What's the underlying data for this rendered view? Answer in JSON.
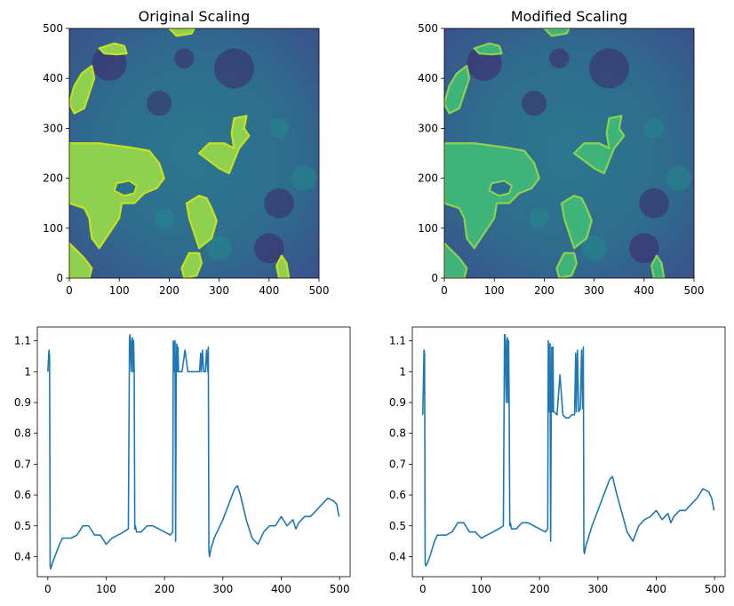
{
  "figure": {
    "panels": 4
  },
  "chart_data": [
    {
      "type": "heatmap",
      "title": "Original Scaling",
      "xlabel": "",
      "ylabel": "",
      "xlim": [
        0,
        500
      ],
      "ylim": [
        0,
        500
      ],
      "xticks": [
        0,
        100,
        200,
        300,
        400,
        500
      ],
      "yticks": [
        0,
        100,
        200,
        300,
        400,
        500
      ],
      "colormap": "viridis",
      "background_color": "#2b6f8e",
      "island_color": "#8fd14f",
      "island_edge_color": "#c7e020",
      "regions": [
        {
          "name": "left-central",
          "points": [
            [
              0,
              270
            ],
            [
              60,
              270
            ],
            [
              120,
              262
            ],
            [
              160,
              255
            ],
            [
              180,
              230
            ],
            [
              190,
              200
            ],
            [
              175,
              180
            ],
            [
              150,
              170
            ],
            [
              130,
              150
            ],
            [
              105,
              150
            ],
            [
              100,
              120
            ],
            [
              80,
              90
            ],
            [
              60,
              60
            ],
            [
              45,
              80
            ],
            [
              40,
              120
            ],
            [
              30,
              140
            ],
            [
              0,
              150
            ]
          ]
        },
        {
          "name": "upper-left",
          "points": [
            [
              0,
              350
            ],
            [
              10,
              385
            ],
            [
              25,
              410
            ],
            [
              45,
              425
            ],
            [
              50,
              400
            ],
            [
              40,
              370
            ],
            [
              30,
              340
            ],
            [
              10,
              330
            ]
          ]
        },
        {
          "name": "top-blob",
          "points": [
            [
              60,
              460
            ],
            [
              90,
              470
            ],
            [
              110,
              465
            ],
            [
              115,
              450
            ],
            [
              95,
              448
            ],
            [
              70,
              450
            ]
          ]
        },
        {
          "name": "top-edge",
          "points": [
            [
              200,
              500
            ],
            [
              250,
              500
            ],
            [
              245,
              490
            ],
            [
              215,
              485
            ]
          ]
        },
        {
          "name": "right-upper",
          "points": [
            [
              330,
              320
            ],
            [
              355,
              325
            ],
            [
              350,
              300
            ],
            [
              360,
              285
            ],
            [
              340,
              260
            ],
            [
              320,
              210
            ],
            [
              300,
              220
            ],
            [
              280,
              235
            ],
            [
              260,
              250
            ],
            [
              280,
              270
            ],
            [
              310,
              270
            ],
            [
              330,
              260
            ],
            [
              325,
              290
            ]
          ]
        },
        {
          "name": "center-right",
          "points": [
            [
              260,
              165
            ],
            [
              275,
              160
            ],
            [
              285,
              140
            ],
            [
              295,
              115
            ],
            [
              285,
              80
            ],
            [
              260,
              60
            ],
            [
              250,
              90
            ],
            [
              240,
              120
            ],
            [
              235,
              150
            ]
          ]
        },
        {
          "name": "bottom-center",
          "points": [
            [
              240,
              50
            ],
            [
              260,
              50
            ],
            [
              265,
              30
            ],
            [
              255,
              5
            ],
            [
              230,
              0
            ],
            [
              225,
              20
            ]
          ]
        },
        {
          "name": "bottom-right",
          "points": [
            [
              420,
              0
            ],
            [
              440,
              0
            ],
            [
              435,
              30
            ],
            [
              425,
              45
            ],
            [
              415,
              25
            ]
          ]
        },
        {
          "name": "bottom-left",
          "points": [
            [
              0,
              70
            ],
            [
              15,
              55
            ],
            [
              30,
              40
            ],
            [
              45,
              20
            ],
            [
              40,
              0
            ],
            [
              0,
              0
            ]
          ]
        },
        {
          "name": "hole",
          "hole": true,
          "points": [
            [
              95,
              190
            ],
            [
              120,
              195
            ],
            [
              135,
              185
            ],
            [
              130,
              170
            ],
            [
              110,
              165
            ],
            [
              90,
              175
            ]
          ]
        }
      ]
    },
    {
      "type": "heatmap",
      "title": "Modified Scaling",
      "xlabel": "",
      "ylabel": "",
      "xlim": [
        0,
        500
      ],
      "ylim": [
        0,
        500
      ],
      "xticks": [
        0,
        100,
        200,
        300,
        400,
        500
      ],
      "yticks": [
        0,
        100,
        200,
        300,
        400,
        500
      ],
      "colormap": "viridis",
      "background_color": "#2b6f8e",
      "island_color": "#3fb47a",
      "island_edge_color": "#8fd14f",
      "regions": "same-as-original"
    },
    {
      "type": "line",
      "title": "",
      "xlabel": "",
      "ylabel": "",
      "xlim": [
        -18,
        518
      ],
      "ylim": [
        0.335,
        1.145
      ],
      "xticks": [
        0,
        100,
        200,
        300,
        400,
        500
      ],
      "yticks": [
        0.4,
        0.5,
        0.6,
        0.7,
        0.8,
        0.9,
        1.0,
        1.1
      ],
      "line_color": "#1f77b4",
      "series": [
        {
          "x": [
            0,
            2,
            3,
            4,
            5,
            8,
            12,
            20,
            25,
            30,
            40,
            50,
            60,
            70,
            80,
            90,
            100,
            110,
            120,
            130,
            138,
            140,
            141,
            143,
            144,
            145,
            146,
            147,
            148,
            149,
            150,
            152,
            160,
            170,
            180,
            190,
            200,
            210,
            214,
            215,
            216,
            217,
            218,
            219,
            220,
            221,
            222,
            223,
            224,
            225,
            230,
            235,
            240,
            245,
            250,
            255,
            260,
            262,
            263,
            265,
            267,
            270,
            272,
            274,
            275,
            276,
            277,
            278,
            280,
            282,
            285,
            290,
            300,
            310,
            320,
            325,
            330,
            340,
            350,
            360,
            370,
            380,
            390,
            400,
            410,
            420,
            425,
            430,
            440,
            450,
            460,
            470,
            480,
            490,
            495,
            499
          ],
          "y": [
            1.0,
            1.07,
            1.05,
            0.37,
            0.36,
            0.38,
            0.4,
            0.44,
            0.46,
            0.46,
            0.46,
            0.47,
            0.5,
            0.5,
            0.47,
            0.47,
            0.44,
            0.46,
            0.47,
            0.48,
            0.49,
            1.11,
            1.12,
            1.0,
            1.1,
            1.11,
            1.0,
            1.1,
            1.0,
            0.49,
            0.5,
            0.48,
            0.48,
            0.5,
            0.5,
            0.49,
            0.48,
            0.47,
            0.48,
            1.1,
            1.0,
            1.09,
            1.1,
            0.45,
            1.0,
            1.09,
            1.0,
            1.08,
            1.0,
            1.0,
            1.0,
            1.07,
            1.0,
            1.0,
            1.0,
            1.0,
            1.0,
            1.06,
            1.0,
            1.07,
            1.0,
            1.0,
            1.07,
            1.0,
            1.08,
            0.42,
            0.4,
            0.41,
            0.43,
            0.44,
            0.46,
            0.48,
            0.52,
            0.57,
            0.62,
            0.63,
            0.6,
            0.52,
            0.46,
            0.44,
            0.48,
            0.5,
            0.5,
            0.53,
            0.5,
            0.52,
            0.49,
            0.51,
            0.53,
            0.53,
            0.55,
            0.57,
            0.59,
            0.58,
            0.57,
            0.53
          ]
        }
      ]
    },
    {
      "type": "line",
      "title": "",
      "xlabel": "",
      "ylabel": "",
      "xlim": [
        -18,
        518
      ],
      "ylim": [
        0.335,
        1.145
      ],
      "xticks": [
        0,
        100,
        200,
        300,
        400,
        500
      ],
      "yticks": [
        0.4,
        0.5,
        0.6,
        0.7,
        0.8,
        0.9,
        1.0,
        1.1
      ],
      "line_color": "#1f77b4",
      "series": [
        {
          "x": [
            0,
            2,
            3,
            4,
            5,
            8,
            12,
            20,
            25,
            30,
            40,
            50,
            60,
            70,
            80,
            90,
            100,
            110,
            120,
            130,
            138,
            140,
            141,
            143,
            144,
            145,
            146,
            147,
            148,
            149,
            150,
            152,
            160,
            170,
            180,
            190,
            200,
            210,
            214,
            215,
            216,
            217,
            218,
            219,
            220,
            221,
            222,
            223,
            224,
            225,
            230,
            235,
            240,
            245,
            250,
            255,
            260,
            262,
            263,
            265,
            267,
            270,
            272,
            274,
            275,
            276,
            277,
            278,
            280,
            282,
            285,
            290,
            300,
            310,
            320,
            325,
            330,
            340,
            350,
            360,
            370,
            380,
            390,
            400,
            410,
            420,
            425,
            430,
            440,
            450,
            460,
            470,
            480,
            490,
            495,
            499
          ],
          "y": [
            0.86,
            1.07,
            1.06,
            0.38,
            0.37,
            0.38,
            0.4,
            0.45,
            0.47,
            0.47,
            0.47,
            0.48,
            0.51,
            0.51,
            0.48,
            0.48,
            0.46,
            0.47,
            0.48,
            0.49,
            0.5,
            1.12,
            1.12,
            0.9,
            1.1,
            1.11,
            0.9,
            1.1,
            0.88,
            0.5,
            0.51,
            0.49,
            0.49,
            0.51,
            0.51,
            0.5,
            0.49,
            0.48,
            0.49,
            1.1,
            0.87,
            1.09,
            1.09,
            0.45,
            0.88,
            1.08,
            0.87,
            1.08,
            0.87,
            0.87,
            0.86,
            0.99,
            0.86,
            0.85,
            0.85,
            0.86,
            0.86,
            1.06,
            0.87,
            1.07,
            0.87,
            0.88,
            1.07,
            0.88,
            1.08,
            0.42,
            0.41,
            0.42,
            0.44,
            0.45,
            0.47,
            0.5,
            0.55,
            0.6,
            0.65,
            0.66,
            0.62,
            0.55,
            0.48,
            0.45,
            0.5,
            0.52,
            0.53,
            0.55,
            0.52,
            0.54,
            0.51,
            0.53,
            0.55,
            0.55,
            0.57,
            0.59,
            0.62,
            0.61,
            0.59,
            0.55
          ]
        }
      ]
    }
  ]
}
